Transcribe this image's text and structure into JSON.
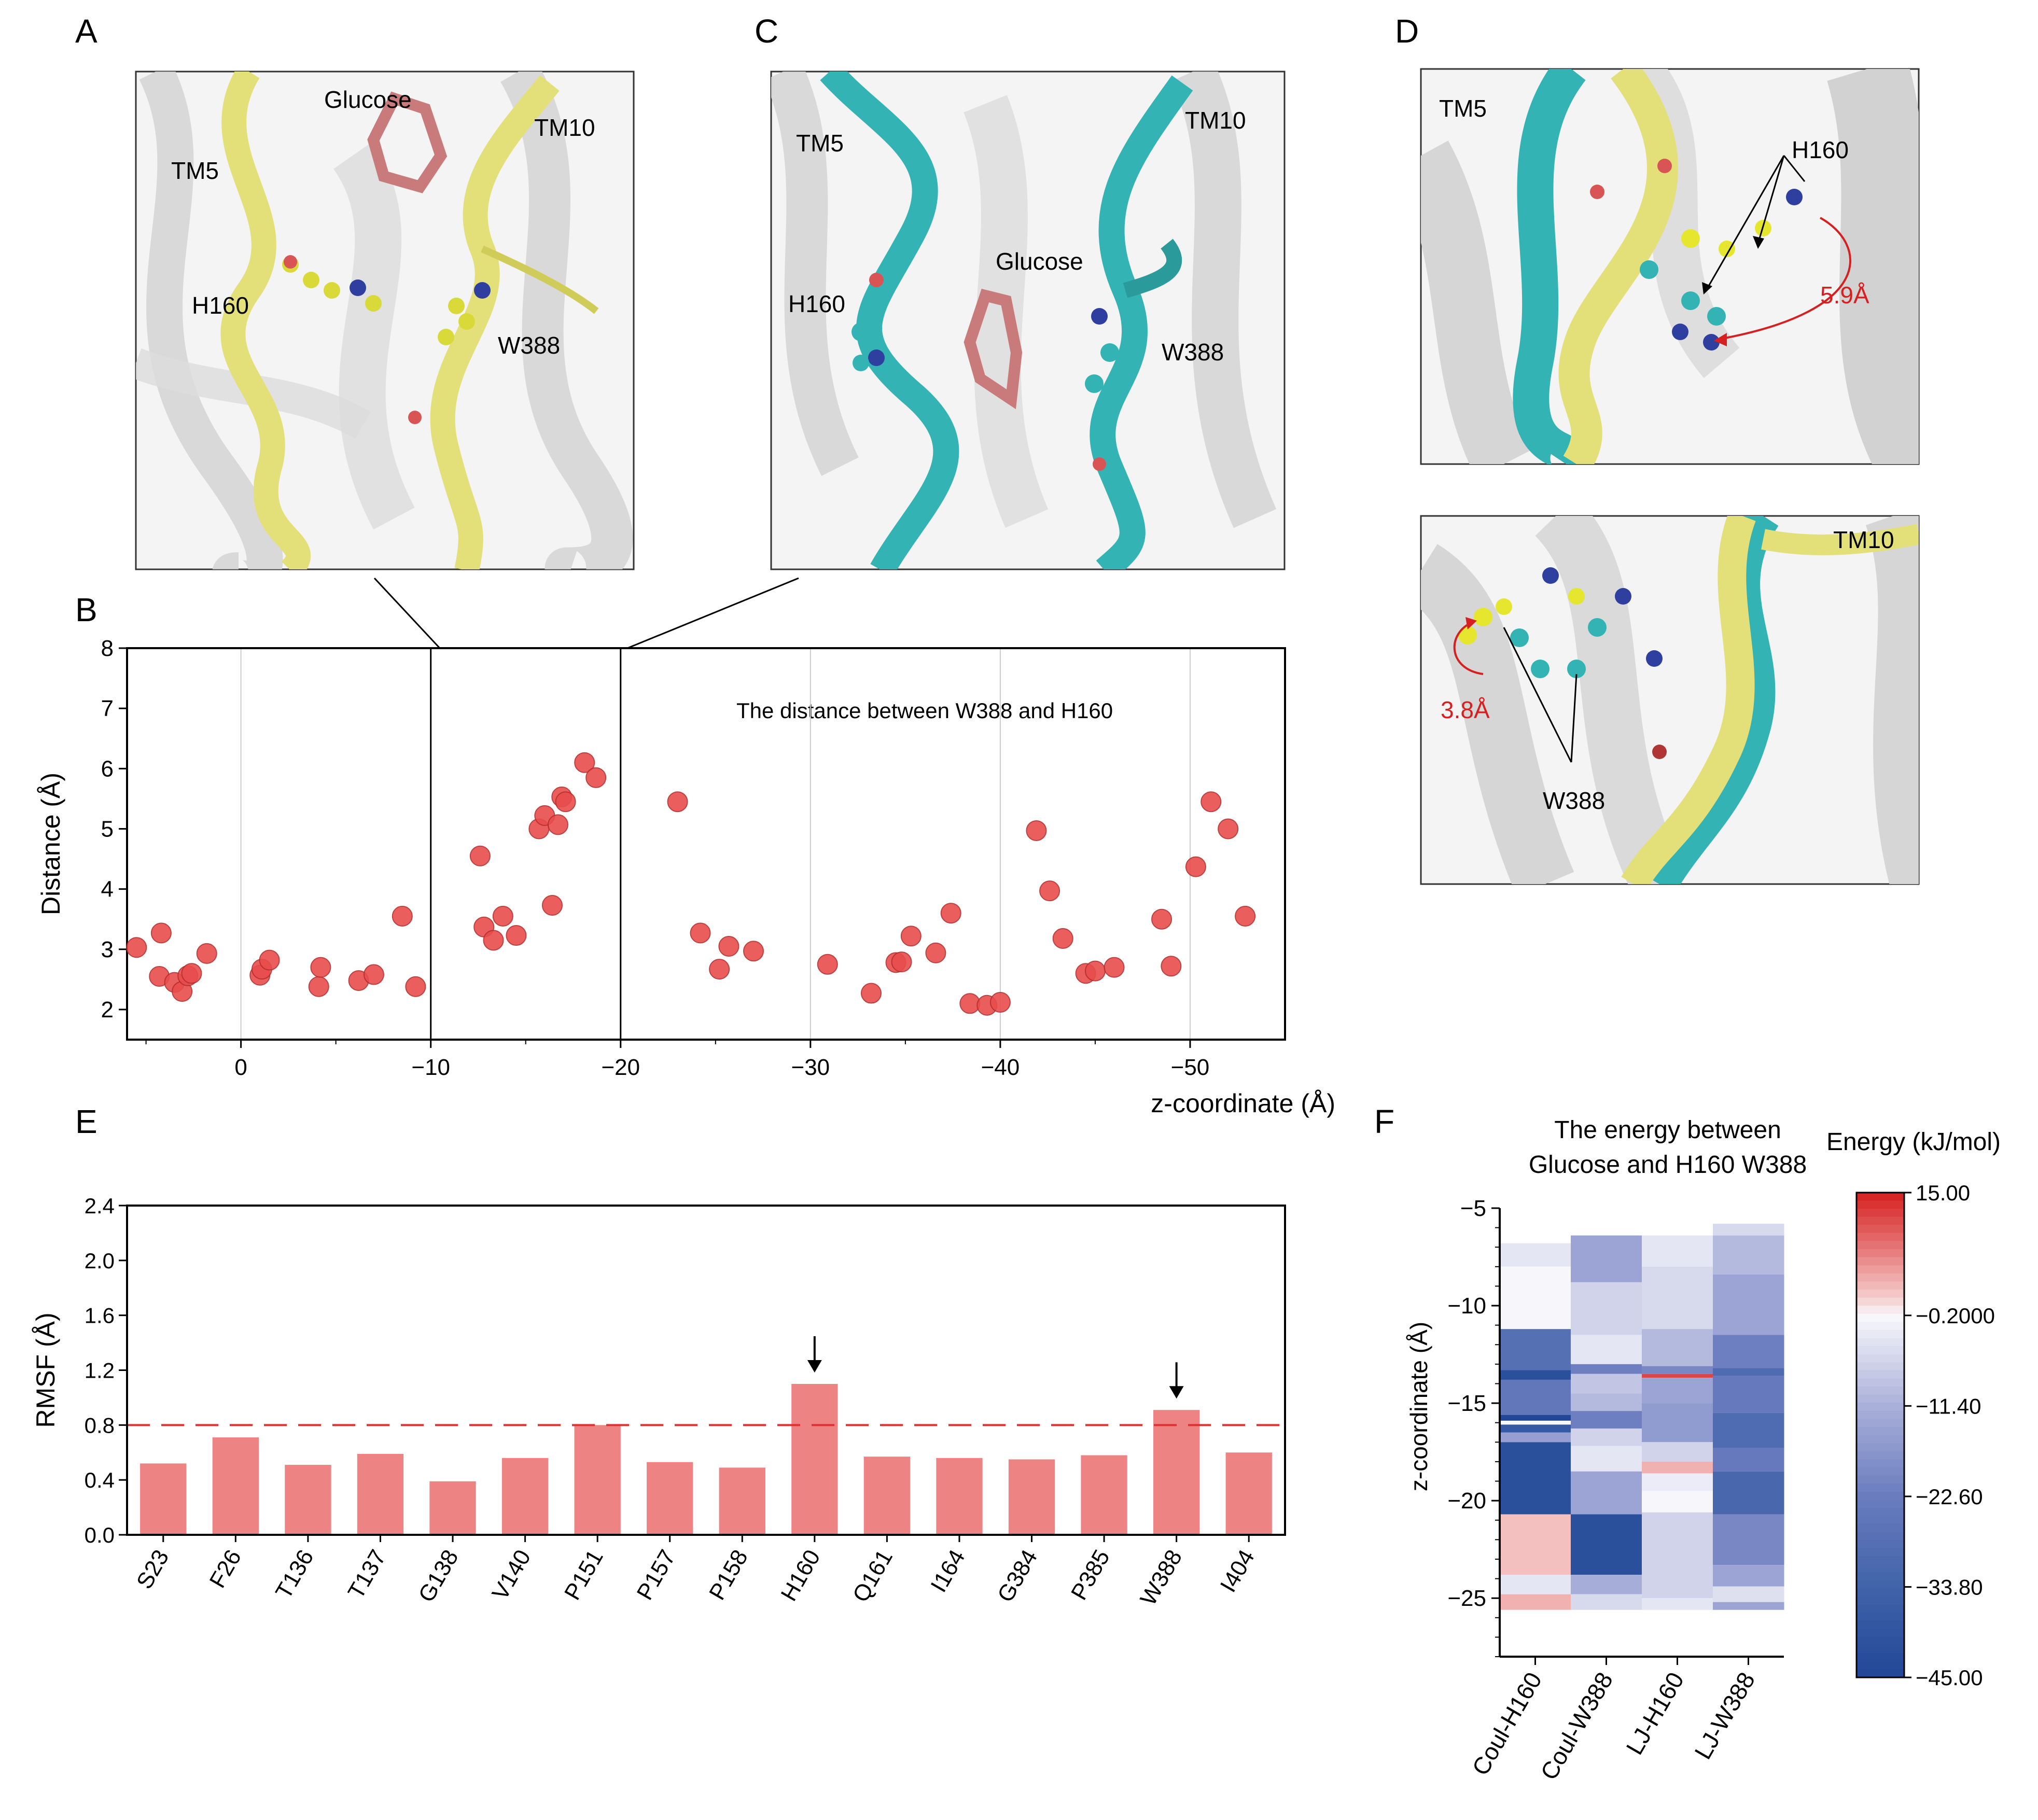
{
  "panel_labels": {
    "A": "A",
    "B": "B",
    "C": "C",
    "D": "D",
    "E": "E",
    "F": "F"
  },
  "colors": {
    "yellow_helix": "#e3e07a",
    "cyan_helix": "#33b3b3",
    "glucose": "#c97a7a",
    "point": "#e84d4d",
    "bar": "#ee8383",
    "grey": "#c8c8c8",
    "red_annot": "#d62020"
  },
  "structure_labels": {
    "A": {
      "glucose": "Glucose",
      "tm5": "TM5",
      "tm10": "TM10",
      "h160": "H160",
      "w388": "W388"
    },
    "C": {
      "glucose": "Glucose",
      "tm5": "TM5",
      "tm10": "TM10",
      "h160": "H160",
      "w388": "W388"
    },
    "D_top": {
      "tm5": "TM5",
      "h160": "H160",
      "dist": "5.9Å"
    },
    "D_bottom": {
      "tm10": "TM10",
      "w388": "W388",
      "dist": "3.8Å"
    }
  },
  "icons": [
    "arrow-icon",
    "distance-arc-icon"
  ],
  "chart_data": [
    {
      "id": "B",
      "type": "scatter",
      "title": "The distance between W388 and H160",
      "xlabel": "z-coordinate (Å)",
      "ylabel": "Distance (Å)",
      "xlim": [
        6,
        -55
      ],
      "ylim": [
        1.5,
        8
      ],
      "xticks": [
        0,
        -10,
        -20,
        -30,
        -40,
        -50
      ],
      "xtick_labels": [
        "0",
        "−10",
        "−20",
        "−30",
        "−40",
        "−50"
      ],
      "yticks": [
        2,
        3,
        4,
        5,
        6,
        7,
        8
      ],
      "grid": true,
      "vlines": [
        -10,
        -20
      ],
      "points": [
        {
          "x": 5.5,
          "y": 3.03
        },
        {
          "x": 4.2,
          "y": 3.27
        },
        {
          "x": 4.3,
          "y": 2.55
        },
        {
          "x": 3.5,
          "y": 2.45
        },
        {
          "x": 3.1,
          "y": 2.3
        },
        {
          "x": 2.8,
          "y": 2.56
        },
        {
          "x": 2.6,
          "y": 2.6
        },
        {
          "x": 1.8,
          "y": 2.93
        },
        {
          "x": -1,
          "y": 2.57
        },
        {
          "x": -1.1,
          "y": 2.67
        },
        {
          "x": -1.5,
          "y": 2.82
        },
        {
          "x": -4.1,
          "y": 2.38
        },
        {
          "x": -4.2,
          "y": 2.7
        },
        {
          "x": -6.2,
          "y": 2.48
        },
        {
          "x": -7,
          "y": 2.58
        },
        {
          "x": -8.5,
          "y": 3.55
        },
        {
          "x": -9.2,
          "y": 2.38
        },
        {
          "x": -12.6,
          "y": 4.55
        },
        {
          "x": -12.8,
          "y": 3.37
        },
        {
          "x": -13.3,
          "y": 3.15
        },
        {
          "x": -13.8,
          "y": 3.55
        },
        {
          "x": -14.5,
          "y": 3.23
        },
        {
          "x": -15.7,
          "y": 5.0
        },
        {
          "x": -16,
          "y": 5.22
        },
        {
          "x": -16.4,
          "y": 3.73
        },
        {
          "x": -16.7,
          "y": 5.07
        },
        {
          "x": -16.9,
          "y": 5.53
        },
        {
          "x": -17.1,
          "y": 5.45
        },
        {
          "x": -18.1,
          "y": 6.1
        },
        {
          "x": -18.7,
          "y": 5.85
        },
        {
          "x": -23,
          "y": 5.45
        },
        {
          "x": -24.2,
          "y": 3.27
        },
        {
          "x": -25.2,
          "y": 2.67
        },
        {
          "x": -25.7,
          "y": 3.05
        },
        {
          "x": -27,
          "y": 2.97
        },
        {
          "x": -30.9,
          "y": 2.75
        },
        {
          "x": -33.2,
          "y": 2.27
        },
        {
          "x": -34.5,
          "y": 2.78
        },
        {
          "x": -34.8,
          "y": 2.79
        },
        {
          "x": -35.3,
          "y": 3.22
        },
        {
          "x": -36.6,
          "y": 2.94
        },
        {
          "x": -37.4,
          "y": 3.6
        },
        {
          "x": -38.4,
          "y": 2.1
        },
        {
          "x": -39.3,
          "y": 2.07
        },
        {
          "x": -40,
          "y": 2.12
        },
        {
          "x": -41.9,
          "y": 4.97
        },
        {
          "x": -42.6,
          "y": 3.97
        },
        {
          "x": -43.3,
          "y": 3.18
        },
        {
          "x": -44.5,
          "y": 2.6
        },
        {
          "x": -45,
          "y": 2.64
        },
        {
          "x": -46,
          "y": 2.7
        },
        {
          "x": -48.5,
          "y": 3.5
        },
        {
          "x": -49,
          "y": 2.72
        },
        {
          "x": -50.3,
          "y": 4.37
        },
        {
          "x": -51.1,
          "y": 5.45
        },
        {
          "x": -52,
          "y": 5.0
        },
        {
          "x": -52.9,
          "y": 3.55
        }
      ]
    },
    {
      "id": "E",
      "type": "bar",
      "ylabel": "RMSF (Å)",
      "ylim": [
        0,
        2.4
      ],
      "yticks": [
        0.0,
        0.4,
        0.8,
        1.2,
        1.6,
        2.0,
        2.4
      ],
      "ytick_labels": [
        "0.0",
        "0.4",
        "0.8",
        "1.2",
        "1.6",
        "2.0",
        "2.4"
      ],
      "threshold": 0.8,
      "categories": [
        "S23",
        "F26",
        "T136",
        "T137",
        "G138",
        "V140",
        "P151",
        "P157",
        "P158",
        "H160",
        "Q161",
        "I164",
        "G384",
        "P385",
        "W388",
        "I404"
      ],
      "values": [
        0.52,
        0.71,
        0.51,
        0.59,
        0.39,
        0.56,
        0.8,
        0.53,
        0.49,
        1.1,
        0.57,
        0.56,
        0.55,
        0.58,
        0.91,
        0.6
      ],
      "arrows_on": [
        "H160",
        "W388"
      ]
    },
    {
      "id": "F",
      "type": "heatmap",
      "title_line1": "The energy between",
      "title_line2": "Glucose and H160 W388",
      "ylabel": "z-coordinate (Å)",
      "ylim": [
        -5,
        -28
      ],
      "yticks": [
        -5,
        -10,
        -15,
        -20,
        -25
      ],
      "ytick_labels": [
        "−5",
        "−10",
        "−15",
        "−20",
        "−25"
      ],
      "columns": [
        "Coul-H160",
        "Coul-W388",
        "LJ-H160",
        "LJ-W388"
      ],
      "colorbar": {
        "title": "Energy (kJ/mol)",
        "min": -45,
        "max": 15,
        "tick_values": [
          15,
          -0.2,
          -11.4,
          -22.6,
          -33.8,
          -45
        ],
        "tick_labels": [
          "15.00",
          "−0.2000",
          "−11.40",
          "−22.60",
          "−33.80",
          "−45.00"
        ]
      },
      "cells": [
        [
          {
            "z0": -6.8,
            "z1": -8,
            "v": -3
          },
          {
            "z0": -8,
            "z1": -11.2,
            "v": -0.5
          },
          {
            "z0": -11.2,
            "z1": -13.3,
            "v": -28
          },
          {
            "z0": -13.3,
            "z1": -13.8,
            "v": -42
          },
          {
            "z0": -13.8,
            "z1": -15.6,
            "v": -25
          },
          {
            "z0": -15.6,
            "z1": -15.9,
            "v": -45
          },
          {
            "z0": -15.9,
            "z1": -16.1,
            "v": -0.5
          },
          {
            "z0": -16.1,
            "z1": -16.5,
            "v": -38
          },
          {
            "z0": -16.5,
            "z1": -17,
            "v": -15
          },
          {
            "z0": -17,
            "z1": -20.7,
            "v": -42
          },
          {
            "z0": -20.7,
            "z1": -23.8,
            "v": 3
          },
          {
            "z0": -23.8,
            "z1": -24.8,
            "v": -3
          },
          {
            "z0": -24.8,
            "z1": -25.6,
            "v": 4
          }
        ],
        [
          {
            "z0": -6.4,
            "z1": -8.8,
            "v": -14
          },
          {
            "z0": -8.8,
            "z1": -11.5,
            "v": -6
          },
          {
            "z0": -11.5,
            "z1": -13,
            "v": -3
          },
          {
            "z0": -13,
            "z1": -13.5,
            "v": -22
          },
          {
            "z0": -13.5,
            "z1": -14.5,
            "v": -8
          },
          {
            "z0": -14.5,
            "z1": -15.4,
            "v": -10
          },
          {
            "z0": -15.4,
            "z1": -16.3,
            "v": -22
          },
          {
            "z0": -16.3,
            "z1": -17.2,
            "v": -6
          },
          {
            "z0": -17.2,
            "z1": -18.5,
            "v": -3
          },
          {
            "z0": -18.5,
            "z1": -20.7,
            "v": -14
          },
          {
            "z0": -20.7,
            "z1": -23.8,
            "v": -42
          },
          {
            "z0": -23.8,
            "z1": -24.8,
            "v": -12
          },
          {
            "z0": -24.8,
            "z1": -25.6,
            "v": -5
          }
        ],
        [
          {
            "z0": -6.4,
            "z1": -8,
            "v": -3
          },
          {
            "z0": -8,
            "z1": -11.2,
            "v": -5
          },
          {
            "z0": -11.2,
            "z1": -13.1,
            "v": -10
          },
          {
            "z0": -13.1,
            "z1": -13.5,
            "v": -20
          },
          {
            "z0": -13.5,
            "z1": -13.7,
            "v": 12
          },
          {
            "z0": -13.7,
            "z1": -15,
            "v": -14
          },
          {
            "z0": -15,
            "z1": -17,
            "v": -16
          },
          {
            "z0": -17,
            "z1": -18,
            "v": -6
          },
          {
            "z0": -18,
            "z1": -18.6,
            "v": 4
          },
          {
            "z0": -18.6,
            "z1": -19.5,
            "v": -2
          },
          {
            "z0": -19.5,
            "z1": -20.6,
            "v": -0.5
          },
          {
            "z0": -20.6,
            "z1": -25,
            "v": -6
          },
          {
            "z0": -25,
            "z1": -25.6,
            "v": -3
          }
        ],
        [
          {
            "z0": -5.8,
            "z1": -6.4,
            "v": -5
          },
          {
            "z0": -6.4,
            "z1": -8.4,
            "v": -10
          },
          {
            "z0": -8.4,
            "z1": -11.5,
            "v": -14
          },
          {
            "z0": -11.5,
            "z1": -13.2,
            "v": -22
          },
          {
            "z0": -13.2,
            "z1": -13.6,
            "v": -30
          },
          {
            "z0": -13.6,
            "z1": -15.5,
            "v": -24
          },
          {
            "z0": -15.5,
            "z1": -17.3,
            "v": -30
          },
          {
            "z0": -17.3,
            "z1": -18.5,
            "v": -24
          },
          {
            "z0": -18.5,
            "z1": -20.7,
            "v": -32
          },
          {
            "z0": -20.7,
            "z1": -23.3,
            "v": -20
          },
          {
            "z0": -23.3,
            "z1": -24.4,
            "v": -14
          },
          {
            "z0": -24.4,
            "z1": -25.2,
            "v": -4
          },
          {
            "z0": -25.2,
            "z1": -25.6,
            "v": -14
          }
        ]
      ]
    }
  ]
}
